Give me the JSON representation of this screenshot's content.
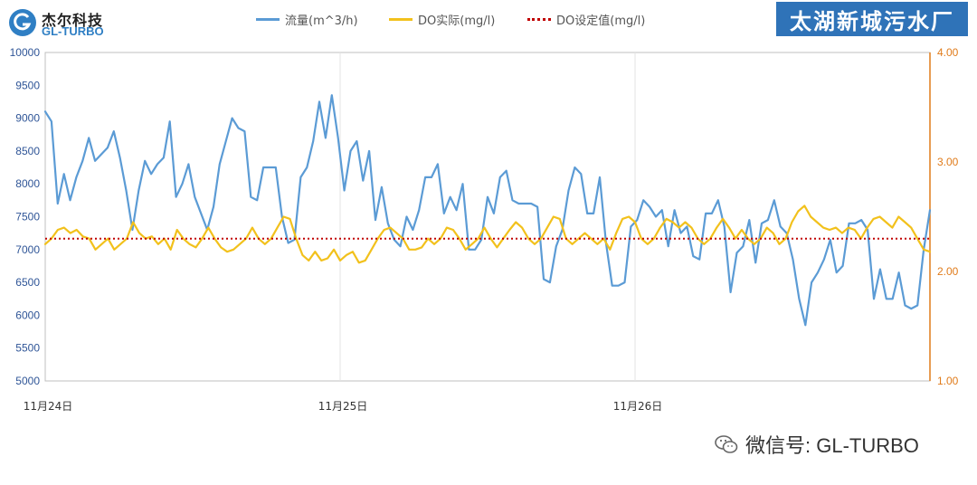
{
  "logo": {
    "cn": "杰尔科技",
    "en": "GL-TURBO"
  },
  "plant_title": "太湖新城污水厂",
  "watermark": {
    "text": "微信号: GL-TURBO",
    "icon": "wechat-icon"
  },
  "colors": {
    "flow": "#5b9bd5",
    "do_actual": "#f2c11c",
    "do_setpoint": "#c00000",
    "right_axis": "#e07b1a",
    "title_bg": "#2f73b8"
  },
  "chart_data": {
    "type": "line",
    "title": "",
    "x_tick_labels": [
      "11月24日",
      "11月25日",
      "11月26日"
    ],
    "y_left": {
      "min": 5000,
      "max": 10000,
      "ticks": [
        5000,
        5500,
        6000,
        6500,
        7000,
        7500,
        8000,
        8500,
        9000,
        9500,
        10000
      ]
    },
    "y_right": {
      "min": 1.0,
      "max": 4.0,
      "ticks": [
        "1.00",
        "2.00",
        "3.00",
        "4.00"
      ]
    },
    "grid": "vertical at day boundaries",
    "legend_position": "top",
    "series": [
      {
        "name": "流量(m^3/h)",
        "axis": "left",
        "style": "solid",
        "values": [
          9100,
          8950,
          7700,
          8150,
          7750,
          8100,
          8350,
          8700,
          8350,
          8450,
          8550,
          8800,
          8400,
          7900,
          7300,
          7900,
          8350,
          8150,
          8300,
          8400,
          8950,
          7800,
          8000,
          8300,
          7800,
          7550,
          7300,
          7650,
          8300,
          8650,
          9000,
          8850,
          8800,
          7800,
          7750,
          8250,
          8250,
          8250,
          7500,
          7100,
          7150,
          8100,
          8250,
          8650,
          9250,
          8700,
          9350,
          8700,
          7900,
          8500,
          8650,
          8050,
          8500,
          7450,
          7950,
          7400,
          7150,
          7050,
          7500,
          7300,
          7600,
          8100,
          8100,
          8300,
          7550,
          7800,
          7600,
          8000,
          7000,
          7000,
          7150,
          7800,
          7550,
          8100,
          8200,
          7750,
          7700,
          7700,
          7700,
          7650,
          6550,
          6500,
          7050,
          7300,
          7900,
          8250,
          8150,
          7550,
          7550,
          8100,
          7100,
          6450,
          6450,
          6500,
          7350,
          7450,
          7750,
          7650,
          7500,
          7600,
          7050,
          7600,
          7250,
          7350,
          6900,
          6850,
          7550,
          7550,
          7750,
          7350,
          6350,
          6950,
          7050,
          7450,
          6800,
          7400,
          7450,
          7750,
          7350,
          7250,
          6850,
          6250,
          5850,
          6500,
          6650,
          6850,
          7150,
          6650,
          6750,
          7400,
          7400,
          7450,
          7300,
          6250,
          6700,
          6250,
          6250,
          6650,
          6150,
          6100,
          6150,
          7000,
          7600
        ]
      },
      {
        "name": "DO实际(mg/l)",
        "axis": "right",
        "style": "solid",
        "values": [
          2.25,
          2.3,
          2.38,
          2.4,
          2.35,
          2.38,
          2.32,
          2.3,
          2.2,
          2.25,
          2.3,
          2.2,
          2.25,
          2.3,
          2.45,
          2.35,
          2.3,
          2.32,
          2.25,
          2.3,
          2.2,
          2.38,
          2.3,
          2.25,
          2.22,
          2.3,
          2.4,
          2.3,
          2.22,
          2.18,
          2.2,
          2.25,
          2.3,
          2.4,
          2.3,
          2.25,
          2.3,
          2.4,
          2.5,
          2.48,
          2.3,
          2.15,
          2.1,
          2.18,
          2.1,
          2.12,
          2.2,
          2.1,
          2.15,
          2.18,
          2.08,
          2.1,
          2.2,
          2.3,
          2.38,
          2.4,
          2.35,
          2.3,
          2.2,
          2.2,
          2.22,
          2.3,
          2.25,
          2.3,
          2.4,
          2.38,
          2.3,
          2.2,
          2.25,
          2.3,
          2.4,
          2.3,
          2.22,
          2.3,
          2.38,
          2.45,
          2.4,
          2.3,
          2.25,
          2.3,
          2.4,
          2.5,
          2.48,
          2.3,
          2.25,
          2.3,
          2.35,
          2.3,
          2.25,
          2.3,
          2.2,
          2.35,
          2.48,
          2.5,
          2.45,
          2.3,
          2.25,
          2.3,
          2.4,
          2.48,
          2.45,
          2.4,
          2.45,
          2.4,
          2.3,
          2.25,
          2.3,
          2.4,
          2.48,
          2.4,
          2.3,
          2.38,
          2.3,
          2.25,
          2.3,
          2.4,
          2.35,
          2.25,
          2.3,
          2.45,
          2.55,
          2.6,
          2.5,
          2.45,
          2.4,
          2.38,
          2.4,
          2.35,
          2.4,
          2.38,
          2.3,
          2.4,
          2.48,
          2.5,
          2.45,
          2.4,
          2.5,
          2.45,
          2.4,
          2.3,
          2.2,
          2.18
        ]
      },
      {
        "name": "DO设定值(mg/l)",
        "axis": "right",
        "style": "dotted",
        "values": [
          2.3,
          2.3
        ]
      }
    ]
  }
}
